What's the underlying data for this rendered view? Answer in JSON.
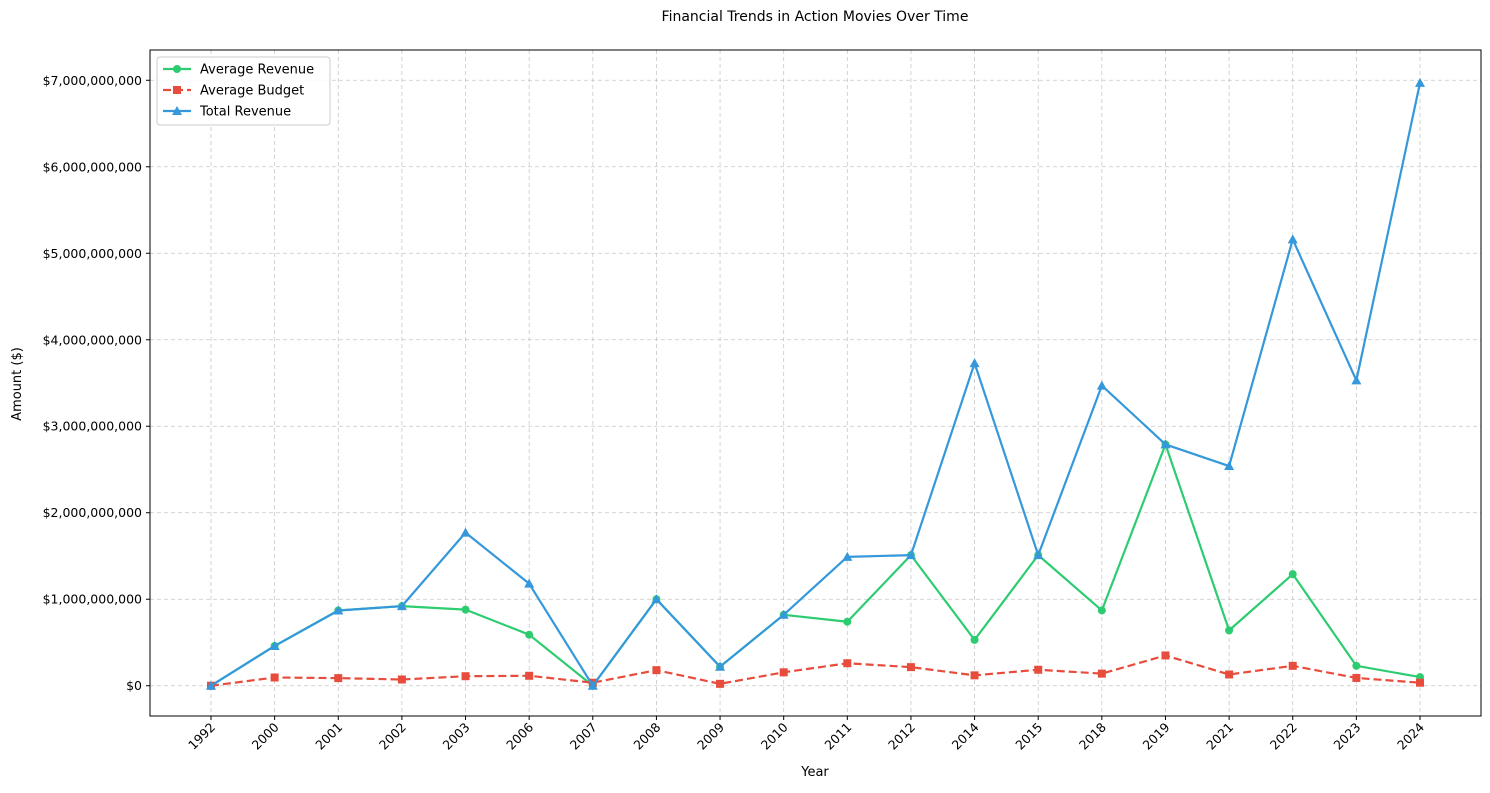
{
  "chart_data": {
    "type": "line",
    "title": "Financial Trends in Action Movies Over Time",
    "xlabel": "Year",
    "ylabel": "Amount ($)",
    "categories": [
      "1992",
      "2000",
      "2001",
      "2002",
      "2003",
      "2006",
      "2007",
      "2008",
      "2009",
      "2010",
      "2011",
      "2012",
      "2014",
      "2015",
      "2018",
      "2019",
      "2021",
      "2022",
      "2023",
      "2024"
    ],
    "ylim": [
      -350000000,
      7350000000
    ],
    "yticks": [
      0,
      1000000000,
      2000000000,
      3000000000,
      4000000000,
      5000000000,
      6000000000,
      7000000000
    ],
    "ytick_labels": [
      "$0",
      "$1,000,000,000",
      "$2,000,000,000",
      "$3,000,000,000",
      "$4,000,000,000",
      "$5,000,000,000",
      "$6,000,000,000",
      "$7,000,000,000"
    ],
    "grid": true,
    "legend_position": "top-left",
    "series": [
      {
        "name": "Average Revenue",
        "color": "#2ecc71",
        "marker": "circle",
        "linestyle": "solid",
        "values": [
          0,
          460000000,
          870000000,
          920000000,
          880000000,
          590000000,
          0,
          1000000000,
          220000000,
          820000000,
          740000000,
          1510000000,
          530000000,
          1510000000,
          870000000,
          2790000000,
          640000000,
          1290000000,
          230000000,
          100000000
        ]
      },
      {
        "name": "Average Budget",
        "color": "#e74c3c",
        "marker": "square",
        "linestyle": "dashed",
        "values": [
          0,
          95000000,
          88000000,
          72000000,
          110000000,
          115000000,
          35000000,
          180000000,
          22000000,
          155000000,
          260000000,
          215000000,
          120000000,
          185000000,
          140000000,
          350000000,
          130000000,
          230000000,
          90000000,
          35000000
        ]
      },
      {
        "name": "Total Revenue",
        "color": "#3498db",
        "marker": "triangle",
        "linestyle": "solid",
        "values": [
          0,
          460000000,
          870000000,
          920000000,
          1770000000,
          1180000000,
          0,
          1000000000,
          220000000,
          820000000,
          1490000000,
          1510000000,
          3730000000,
          1510000000,
          3470000000,
          2790000000,
          2540000000,
          5160000000,
          3530000000,
          6970000000
        ]
      }
    ]
  }
}
